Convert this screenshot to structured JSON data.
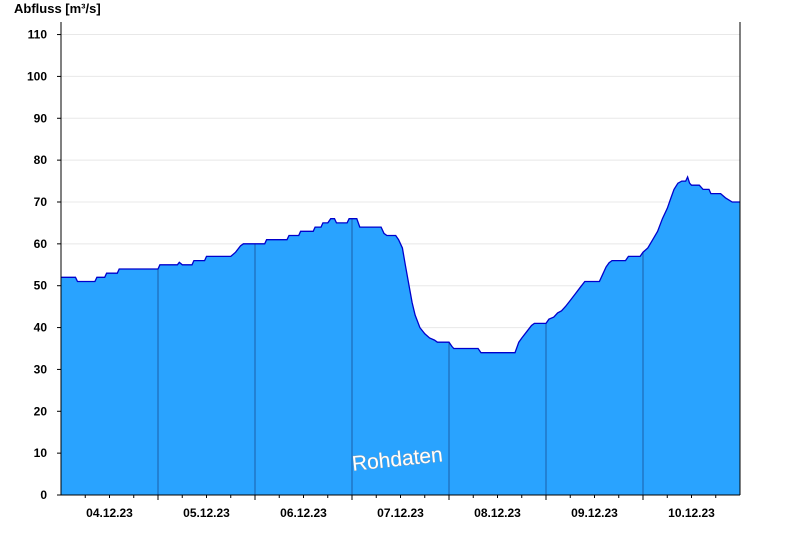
{
  "chart_data": {
    "type": "area",
    "title": "",
    "ylabel": "Abfluss [m³/s]",
    "xlabel": "",
    "ylim": [
      0,
      113
    ],
    "yticks": [
      0,
      10,
      20,
      30,
      40,
      50,
      60,
      70,
      80,
      90,
      100,
      110
    ],
    "xticks": [
      "04.12.23",
      "05.12.23",
      "06.12.23",
      "07.12.23",
      "08.12.23",
      "09.12.23",
      "10.12.23"
    ],
    "xlim_days": [
      0,
      7
    ],
    "watermark": "Rohdaten",
    "grid": true,
    "colors": {
      "fill": "#29a3ff",
      "line": "#0000cc",
      "axis": "#000000",
      "grid": "#e8e8e8"
    },
    "series": [
      {
        "points": [
          [
            0.0,
            52
          ],
          [
            0.15,
            52
          ],
          [
            0.17,
            51
          ],
          [
            0.35,
            51
          ],
          [
            0.37,
            52
          ],
          [
            0.45,
            52
          ],
          [
            0.47,
            53
          ],
          [
            0.58,
            53
          ],
          [
            0.6,
            54
          ],
          [
            1.0,
            54
          ],
          [
            1.02,
            55
          ],
          [
            1.2,
            55
          ],
          [
            1.22,
            55.6
          ],
          [
            1.25,
            55
          ],
          [
            1.35,
            55
          ],
          [
            1.37,
            56
          ],
          [
            1.48,
            56
          ],
          [
            1.5,
            57
          ],
          [
            1.75,
            57
          ],
          [
            1.8,
            58
          ],
          [
            1.85,
            59.5
          ],
          [
            1.88,
            60
          ],
          [
            2.1,
            60
          ],
          [
            2.12,
            61
          ],
          [
            2.33,
            61
          ],
          [
            2.35,
            62
          ],
          [
            2.45,
            62
          ],
          [
            2.47,
            63
          ],
          [
            2.6,
            63
          ],
          [
            2.62,
            64
          ],
          [
            2.68,
            64
          ],
          [
            2.7,
            65
          ],
          [
            2.75,
            65
          ],
          [
            2.78,
            66
          ],
          [
            2.82,
            66
          ],
          [
            2.84,
            65
          ],
          [
            2.95,
            65
          ],
          [
            2.97,
            66
          ],
          [
            3.05,
            66
          ],
          [
            3.08,
            64
          ],
          [
            3.3,
            64
          ],
          [
            3.33,
            62.5
          ],
          [
            3.36,
            62
          ],
          [
            3.45,
            62
          ],
          [
            3.48,
            61
          ],
          [
            3.52,
            59
          ],
          [
            3.55,
            55
          ],
          [
            3.58,
            51
          ],
          [
            3.62,
            46
          ],
          [
            3.65,
            43
          ],
          [
            3.7,
            40
          ],
          [
            3.75,
            38.5
          ],
          [
            3.8,
            37.5
          ],
          [
            3.85,
            37
          ],
          [
            3.88,
            36.5
          ],
          [
            4.0,
            36.5
          ],
          [
            4.03,
            35.5
          ],
          [
            4.05,
            35
          ],
          [
            4.3,
            35
          ],
          [
            4.33,
            34
          ],
          [
            4.68,
            34
          ],
          [
            4.72,
            36.5
          ],
          [
            4.75,
            37.5
          ],
          [
            4.8,
            39
          ],
          [
            4.85,
            40.5
          ],
          [
            4.88,
            41
          ],
          [
            5.0,
            41
          ],
          [
            5.03,
            42
          ],
          [
            5.08,
            42.5
          ],
          [
            5.12,
            43.5
          ],
          [
            5.16,
            44
          ],
          [
            5.2,
            45
          ],
          [
            5.25,
            46.5
          ],
          [
            5.3,
            48
          ],
          [
            5.35,
            49.5
          ],
          [
            5.4,
            51
          ],
          [
            5.55,
            51
          ],
          [
            5.58,
            52.5
          ],
          [
            5.62,
            54.5
          ],
          [
            5.65,
            55.5
          ],
          [
            5.68,
            56
          ],
          [
            5.82,
            56
          ],
          [
            5.85,
            57
          ],
          [
            5.97,
            57
          ],
          [
            6.0,
            58
          ],
          [
            6.05,
            59
          ],
          [
            6.1,
            61
          ],
          [
            6.15,
            63
          ],
          [
            6.2,
            66
          ],
          [
            6.25,
            68.5
          ],
          [
            6.28,
            70.5
          ],
          [
            6.32,
            73
          ],
          [
            6.36,
            74.5
          ],
          [
            6.4,
            75
          ],
          [
            6.44,
            75
          ],
          [
            6.46,
            76
          ],
          [
            6.48,
            74.5
          ],
          [
            6.5,
            74
          ],
          [
            6.58,
            74
          ],
          [
            6.62,
            73
          ],
          [
            6.68,
            73
          ],
          [
            6.7,
            72
          ],
          [
            6.8,
            72
          ],
          [
            6.85,
            71
          ],
          [
            6.92,
            70
          ],
          [
            7.0,
            70
          ]
        ]
      }
    ]
  }
}
